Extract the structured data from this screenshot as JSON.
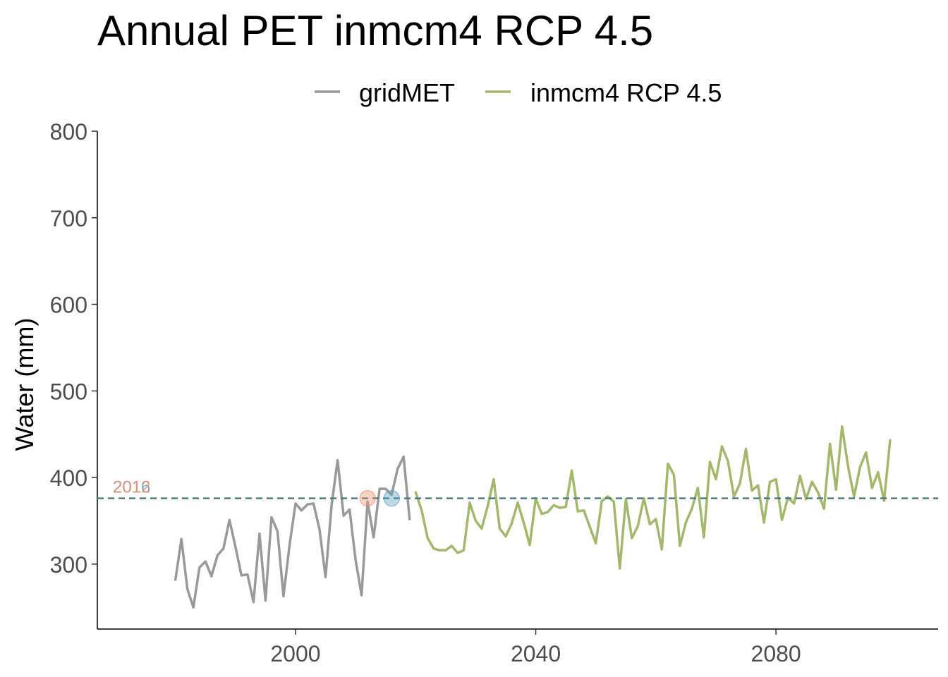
{
  "chart_data": {
    "type": "line",
    "title": "Annual PET inmcm4 RCP 4.5",
    "xlabel": "",
    "ylabel": "Water (mm)",
    "xlim": [
      1967,
      2107
    ],
    "ylim": [
      225,
      800
    ],
    "x_ticks": [
      2000,
      2040,
      2080
    ],
    "y_ticks": [
      300,
      400,
      500,
      600,
      700,
      800
    ],
    "grid": false,
    "legend_position": "top",
    "series": [
      {
        "name": "gridMET",
        "color": "#999999",
        "x": [
          1980,
          1981,
          1982,
          1983,
          1984,
          1985,
          1986,
          1987,
          1988,
          1989,
          1990,
          1991,
          1992,
          1993,
          1994,
          1995,
          1996,
          1997,
          1998,
          1999,
          2000,
          2001,
          2002,
          2003,
          2004,
          2005,
          2006,
          2007,
          2008,
          2009,
          2010,
          2011,
          2012,
          2013,
          2014,
          2015,
          2016,
          2017,
          2018,
          2019
        ],
        "values": [
          282,
          329,
          271,
          250,
          296,
          303,
          286,
          310,
          318,
          351,
          320,
          287,
          288,
          256,
          335,
          258,
          354,
          338,
          263,
          322,
          370,
          362,
          369,
          370,
          340,
          285,
          368,
          420,
          356,
          363,
          305,
          264,
          372,
          331,
          387,
          387,
          380,
          410,
          424,
          352
        ]
      },
      {
        "name": "inmcm4 RCP 4.5",
        "color": "#a3b86c",
        "x": [
          2020,
          2021,
          2022,
          2023,
          2024,
          2025,
          2026,
          2027,
          2028,
          2029,
          2030,
          2031,
          2032,
          2033,
          2034,
          2035,
          2036,
          2037,
          2038,
          2039,
          2040,
          2041,
          2042,
          2043,
          2044,
          2045,
          2046,
          2047,
          2048,
          2049,
          2050,
          2051,
          2052,
          2053,
          2054,
          2055,
          2056,
          2057,
          2058,
          2059,
          2060,
          2061,
          2062,
          2063,
          2064,
          2065,
          2066,
          2067,
          2068,
          2069,
          2070,
          2071,
          2072,
          2073,
          2074,
          2075,
          2076,
          2077,
          2078,
          2079,
          2080,
          2081,
          2082,
          2083,
          2084,
          2085,
          2086,
          2087,
          2088,
          2089,
          2090,
          2091,
          2092,
          2093,
          2094,
          2095,
          2096,
          2097,
          2098,
          2099
        ],
        "values": [
          383,
          362,
          330,
          318,
          316,
          316,
          321,
          313,
          316,
          371,
          350,
          341,
          367,
          398,
          341,
          332,
          347,
          371,
          348,
          322,
          376,
          358,
          360,
          368,
          365,
          366,
          408,
          361,
          362,
          343,
          324,
          373,
          378,
          372,
          295,
          375,
          330,
          344,
          376,
          346,
          352,
          317,
          416,
          403,
          321,
          348,
          364,
          388,
          331,
          418,
          398,
          436,
          419,
          378,
          393,
          433,
          385,
          391,
          348,
          395,
          398,
          351,
          377,
          370,
          402,
          375,
          395,
          383,
          364,
          439,
          386,
          459,
          413,
          378,
          412,
          429,
          388,
          406,
          373,
          443
        ]
      }
    ],
    "reference_lines": [
      {
        "y": 376,
        "style": "dashed",
        "color": "#4d7d80"
      }
    ],
    "annotations": [
      {
        "text": "2016",
        "x": 2016,
        "y": 376,
        "color": "#5aa1c0"
      },
      {
        "text": "2012",
        "x": 2012,
        "y": 376,
        "color": "#f08e6e"
      }
    ]
  }
}
